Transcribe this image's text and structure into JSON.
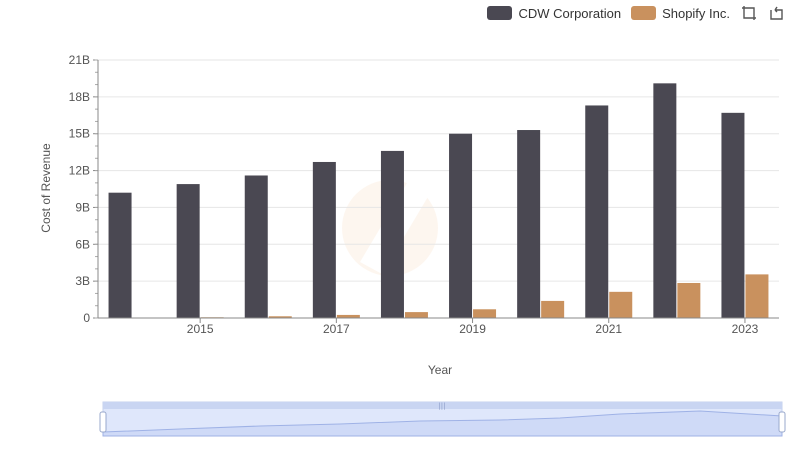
{
  "legend": {
    "items": [
      {
        "name": "CDW Corporation",
        "color": "#4a4852"
      },
      {
        "name": "Shopify Inc.",
        "color": "#c9915e"
      }
    ],
    "tools": [
      "zoom-select-icon",
      "zoom-reset-icon"
    ]
  },
  "chart_data": {
    "type": "bar",
    "xlabel": "Year",
    "ylabel": "Cost of Revenue",
    "x_ticks": [
      "2015",
      "2017",
      "2019",
      "2021",
      "2023"
    ],
    "y_ticks": [
      "0",
      "3B",
      "6B",
      "9B",
      "12B",
      "15B",
      "18B",
      "21B"
    ],
    "ylim": [
      0,
      21
    ],
    "y_unit": "B",
    "grid": true,
    "legend_position": "top-right",
    "categories": [
      "2014",
      "2015",
      "2016",
      "2017",
      "2018",
      "2019",
      "2020",
      "2021",
      "2022",
      "2023"
    ],
    "series": [
      {
        "name": "CDW Corporation",
        "color": "#4a4852",
        "values": [
          10.2,
          10.9,
          11.6,
          12.7,
          13.6,
          15.0,
          15.3,
          17.3,
          19.1,
          16.7
        ]
      },
      {
        "name": "Shopify Inc.",
        "color": "#c9915e",
        "values": [
          0.0,
          0.06,
          0.14,
          0.25,
          0.48,
          0.71,
          1.39,
          2.13,
          2.85,
          3.55
        ]
      }
    ],
    "slider": {
      "range": [
        0,
        1
      ]
    }
  }
}
